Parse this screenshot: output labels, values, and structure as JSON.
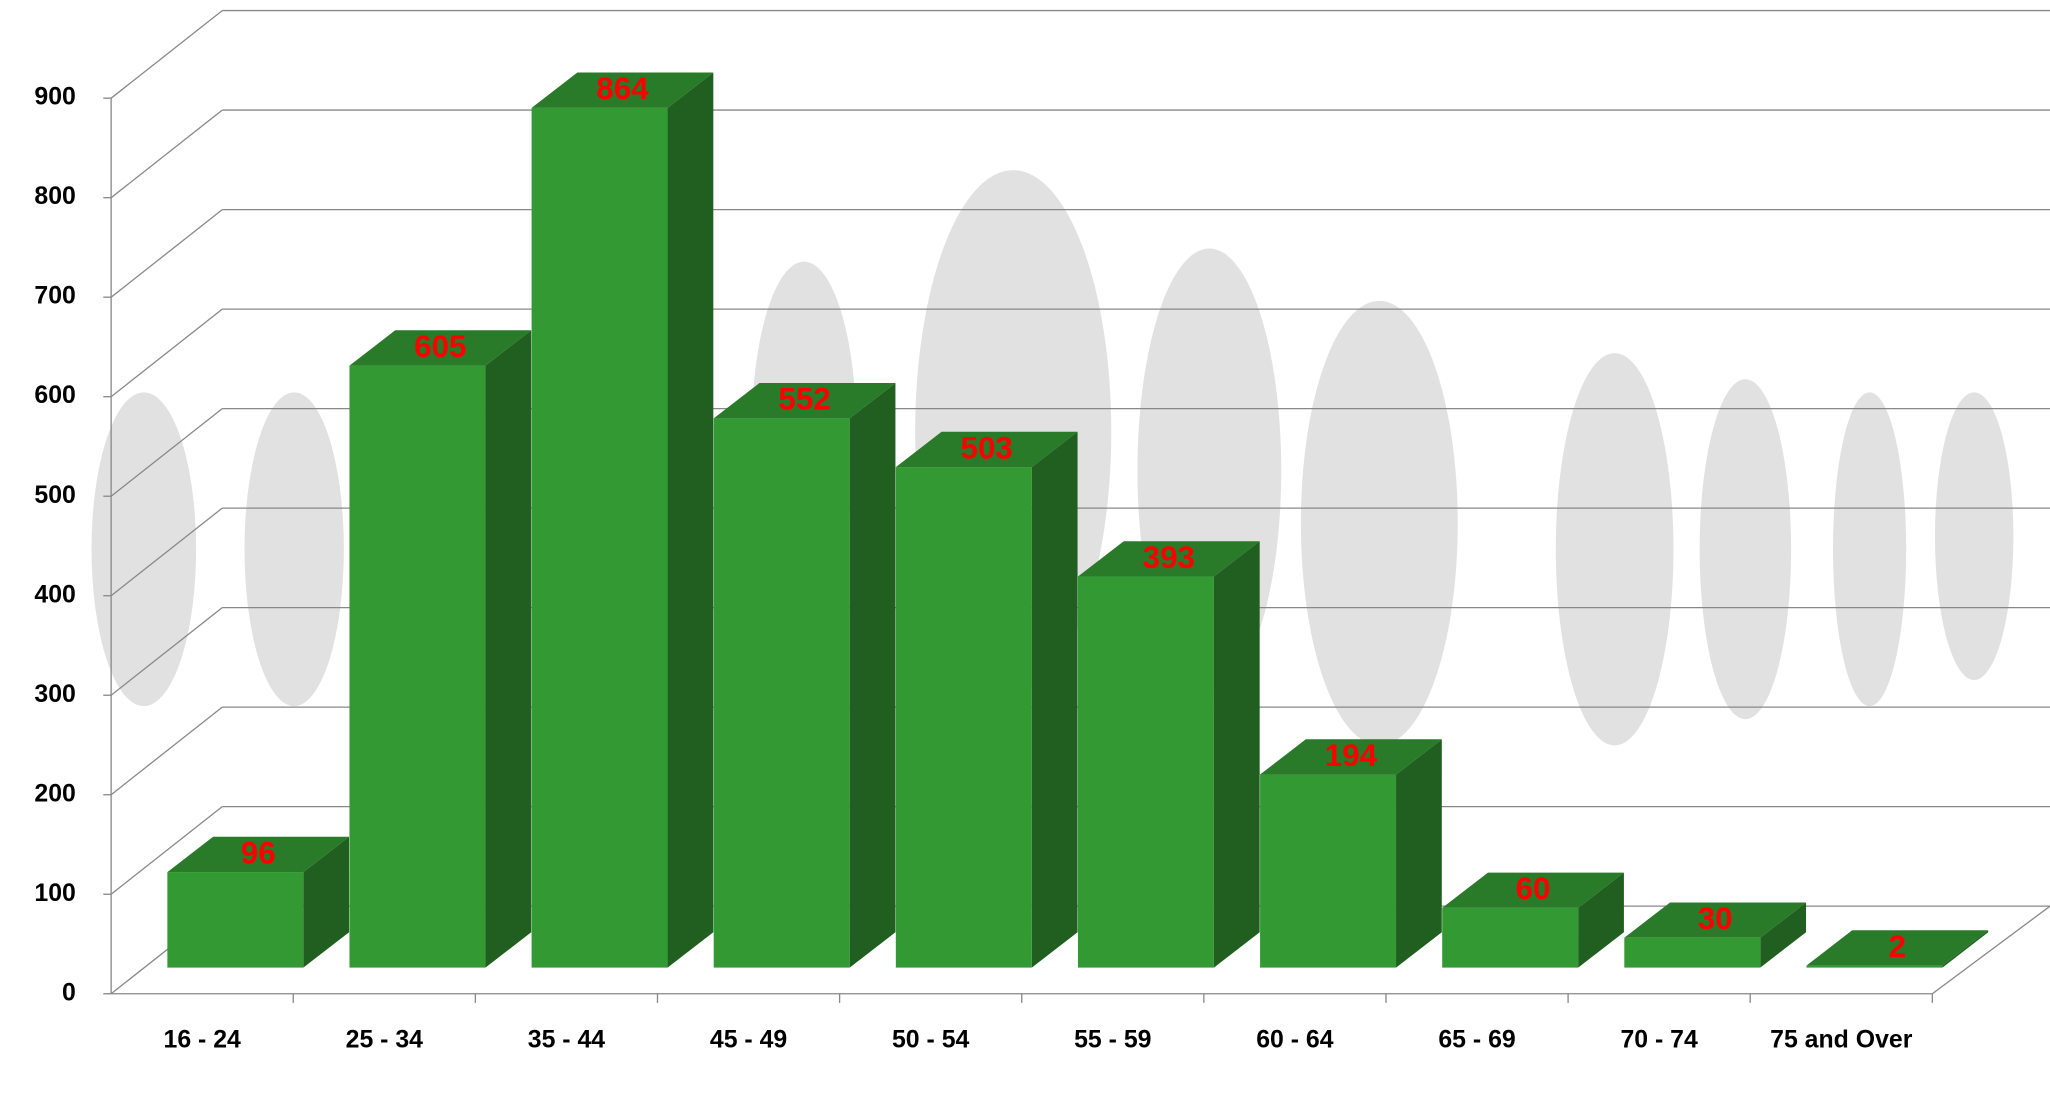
{
  "chart_data": {
    "type": "bar3d",
    "categories": [
      "16 - 24",
      "25 - 34",
      "35 - 44",
      "45 - 49",
      "50 - 54",
      "55 - 59",
      "60 - 64",
      "65 - 69",
      "70 - 74",
      "75 and Over"
    ],
    "values": [
      96,
      605,
      864,
      552,
      503,
      393,
      194,
      60,
      30,
      2
    ],
    "color": "#339933",
    "value_label_color": "#ff0000",
    "ylim": [
      0,
      900
    ],
    "yticks": [
      0,
      100,
      200,
      300,
      400,
      500,
      600,
      700,
      800,
      900
    ],
    "grid": true
  }
}
